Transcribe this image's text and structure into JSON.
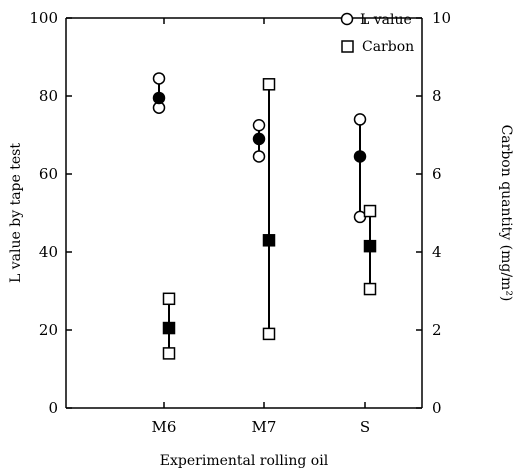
{
  "chart_data": {
    "type": "scatter",
    "categories": [
      "M6",
      "M7",
      "S"
    ],
    "xlabel": "Experimental rolling oil",
    "ylabel_left": "L value by tape test",
    "ylabel_right": "Carbon quantity (mg/m²)",
    "ylim_left": [
      0,
      100
    ],
    "ylim_right": [
      0,
      10
    ],
    "y_ticks_left": [
      0,
      20,
      40,
      60,
      80,
      100
    ],
    "y_ticks_right": [
      0,
      2,
      4,
      6,
      8,
      10
    ],
    "legend_position": "top-right",
    "grid": false,
    "series": [
      {
        "name": "L value",
        "axis": "left",
        "marker": "circle",
        "points": [
          {
            "category": "M6",
            "mean": 79.5,
            "min": 77,
            "max": 84.5
          },
          {
            "category": "M7",
            "mean": 69,
            "min": 64.5,
            "max": 72.5
          },
          {
            "category": "S",
            "mean": 64.5,
            "min": 49,
            "max": 74
          }
        ]
      },
      {
        "name": "Carbon",
        "axis": "right",
        "marker": "square",
        "points": [
          {
            "category": "M6",
            "mean": 2.05,
            "min": 1.4,
            "max": 2.8
          },
          {
            "category": "M7",
            "mean": 4.3,
            "min": 1.9,
            "max": 8.3
          },
          {
            "category": "S",
            "mean": 4.15,
            "min": 3.05,
            "max": 5.05
          }
        ]
      }
    ]
  }
}
